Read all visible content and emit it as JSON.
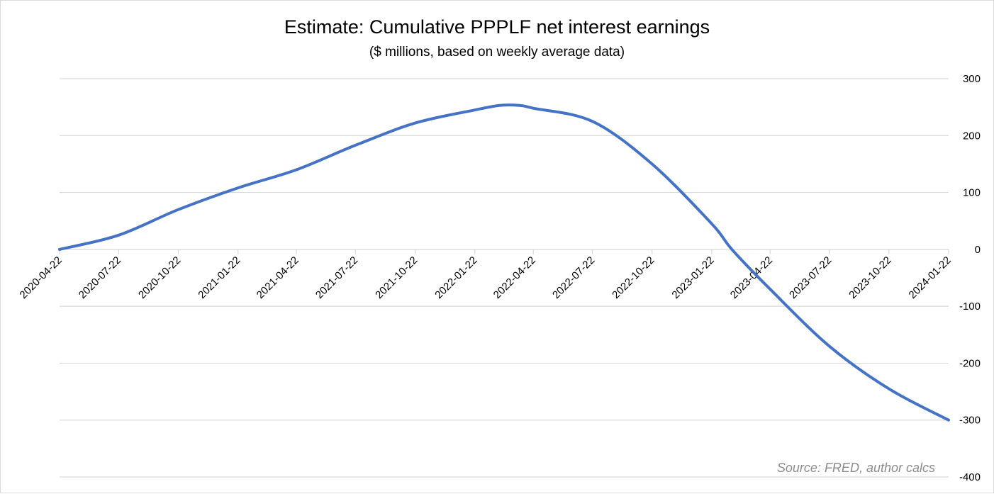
{
  "chart_data": {
    "type": "line",
    "title": "Estimate: Cumulative PPPLF net interest earnings",
    "subtitle": "($ millions, based on weekly average data)",
    "source_note": "Source: FRED, author calcs",
    "xlabel": "",
    "ylabel": "",
    "y_axis_position": "right",
    "grid": true,
    "legend": "none",
    "ylim": [
      -400,
      300
    ],
    "y_ticks": [
      300,
      200,
      100,
      0,
      -100,
      -200,
      -300,
      -400
    ],
    "x_tick_labels": [
      "2020-04-22",
      "2020-07-22",
      "2020-10-22",
      "2021-01-22",
      "2021-04-22",
      "2021-07-22",
      "2021-10-22",
      "2022-01-22",
      "2022-04-22",
      "2022-07-22",
      "2022-10-22",
      "2023-01-22",
      "2023-04-22",
      "2023-07-22",
      "2023-10-22",
      "2024-01-22"
    ],
    "colors": {
      "line": "#4472C4",
      "grid": "#d9d9d9",
      "source": "#8c8c8c"
    },
    "series": [
      {
        "x": [
          "2020-04-22",
          "2020-07-22",
          "2020-10-22",
          "2021-01-22",
          "2021-04-22",
          "2021-07-22",
          "2021-10-22",
          "2022-01-22",
          "2022-03-01",
          "2022-04-01",
          "2022-04-22",
          "2022-07-22",
          "2022-10-22",
          "2023-01-22",
          "2023-02-22",
          "2023-04-22",
          "2023-07-22",
          "2023-10-22",
          "2024-01-22"
        ],
        "values": [
          0,
          25,
          70,
          108,
          140,
          183,
          222,
          245,
          253,
          253,
          248,
          225,
          150,
          45,
          0,
          -70,
          -170,
          -245,
          -300
        ]
      }
    ]
  }
}
